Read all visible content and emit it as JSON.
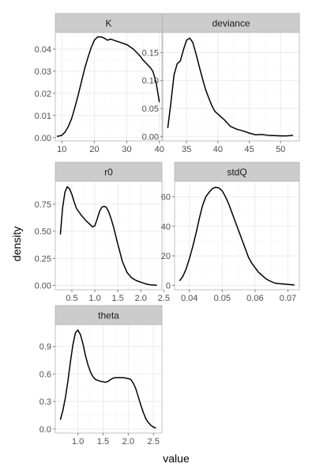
{
  "axes": {
    "xlabel": "value",
    "ylabel": "density"
  },
  "colors": {
    "strip_fill": "#cccccc",
    "strip_border": "#b3b3b3",
    "panel_border": "#b3b3b3",
    "grid_major": "#ebebeb",
    "grid_minor": "#f5f5f5",
    "line": "#000000",
    "tick": "#7f7f7f"
  },
  "chart_data": [
    {
      "type": "line",
      "title": "K",
      "xlim": [
        8,
        40.8
      ],
      "ylim": [
        -0.0015,
        0.0475
      ],
      "xticks": [
        10,
        20,
        30,
        40
      ],
      "xtick_labels": [
        "10",
        "20",
        "30",
        "40"
      ],
      "yticks": [
        0.0,
        0.01,
        0.02,
        0.03,
        0.04
      ],
      "ytick_labels": [
        "0.00",
        "0.01",
        "0.02",
        "0.03",
        "0.04"
      ],
      "grid": true,
      "x": [
        8.5,
        10,
        11,
        12,
        13,
        14,
        15,
        16,
        17,
        18,
        19,
        20,
        21,
        22,
        23,
        24,
        25,
        26,
        27,
        28,
        29,
        30,
        31,
        32,
        33,
        34,
        35,
        36,
        37,
        38,
        39,
        40
      ],
      "y": [
        0.0005,
        0.001,
        0.0025,
        0.005,
        0.0085,
        0.0135,
        0.019,
        0.025,
        0.031,
        0.036,
        0.0405,
        0.044,
        0.0455,
        0.0455,
        0.045,
        0.044,
        0.0445,
        0.044,
        0.0435,
        0.043,
        0.0425,
        0.042,
        0.041,
        0.04,
        0.0385,
        0.037,
        0.035,
        0.0335,
        0.032,
        0.03,
        0.025,
        0.016
      ]
    },
    {
      "type": "line",
      "title": "deviance",
      "xlim": [
        31.2,
        53
      ],
      "ylim": [
        -0.008,
        0.186
      ],
      "xticks": [
        35,
        40,
        45,
        50
      ],
      "xtick_labels": [
        "35",
        "40",
        "45",
        "50"
      ],
      "yticks": [
        0.0,
        0.05,
        0.1,
        0.15
      ],
      "ytick_labels": [
        "0.00",
        "0.05",
        "0.10",
        "0.15"
      ],
      "grid": true,
      "x": [
        32,
        32.5,
        33,
        33.5,
        34,
        34.5,
        35,
        35.5,
        36,
        36.5,
        37,
        37.5,
        38,
        38.5,
        39,
        39.5,
        40,
        41,
        42,
        43,
        44,
        45,
        46,
        47,
        48,
        49,
        50,
        51,
        52
      ],
      "y": [
        0.015,
        0.06,
        0.11,
        0.13,
        0.135,
        0.155,
        0.172,
        0.176,
        0.168,
        0.148,
        0.126,
        0.105,
        0.085,
        0.07,
        0.056,
        0.045,
        0.04,
        0.03,
        0.018,
        0.013,
        0.01,
        0.006,
        0.003,
        0.0035,
        0.002,
        0.0015,
        0.001,
        0.001,
        0.002
      ]
    },
    {
      "type": "line",
      "title": "r0",
      "xlim": [
        0.14,
        2.46
      ],
      "ylim": [
        -0.04,
        0.96
      ],
      "xticks": [
        0.5,
        1.0,
        1.5,
        2.0,
        2.5
      ],
      "xtick_labels": [
        "0.5",
        "1.0",
        "1.5",
        "2.0",
        "2.5"
      ],
      "yticks": [
        0.0,
        0.25,
        0.5,
        0.75
      ],
      "ytick_labels": [
        "0.00",
        "0.25",
        "0.50",
        "0.75"
      ],
      "grid": true,
      "x": [
        0.25,
        0.3,
        0.35,
        0.4,
        0.45,
        0.5,
        0.55,
        0.6,
        0.7,
        0.8,
        0.9,
        0.95,
        1.0,
        1.05,
        1.1,
        1.15,
        1.2,
        1.25,
        1.3,
        1.35,
        1.4,
        1.5,
        1.6,
        1.7,
        1.8,
        1.9,
        2.0,
        2.1,
        2.2,
        2.3,
        2.35
      ],
      "y": [
        0.47,
        0.72,
        0.86,
        0.91,
        0.89,
        0.84,
        0.77,
        0.71,
        0.65,
        0.6,
        0.56,
        0.54,
        0.55,
        0.61,
        0.68,
        0.72,
        0.73,
        0.72,
        0.68,
        0.62,
        0.55,
        0.38,
        0.22,
        0.12,
        0.07,
        0.045,
        0.03,
        0.015,
        0.006,
        0.003,
        0.001
      ]
    },
    {
      "type": "line",
      "title": "stdQ",
      "xlim": [
        0.0355,
        0.0735
      ],
      "ylim": [
        -3,
        70.5
      ],
      "xticks": [
        0.04,
        0.05,
        0.06,
        0.07
      ],
      "xtick_labels": [
        "0.04",
        "0.05",
        "0.06",
        "0.07"
      ],
      "yticks": [
        0,
        20,
        40,
        60
      ],
      "ytick_labels": [
        "0",
        "20",
        "40",
        "60"
      ],
      "grid": true,
      "x": [
        0.037,
        0.038,
        0.039,
        0.04,
        0.041,
        0.042,
        0.043,
        0.044,
        0.045,
        0.046,
        0.047,
        0.048,
        0.049,
        0.05,
        0.051,
        0.052,
        0.053,
        0.054,
        0.055,
        0.056,
        0.057,
        0.058,
        0.059,
        0.06,
        0.061,
        0.062,
        0.063,
        0.064,
        0.065,
        0.066,
        0.067,
        0.068,
        0.069,
        0.07,
        0.071,
        0.072
      ],
      "y": [
        3,
        6,
        11,
        18,
        26,
        35,
        45,
        54,
        60,
        63,
        65.5,
        66.5,
        66,
        64,
        60,
        55,
        49,
        43,
        37,
        31,
        25,
        19,
        15,
        12,
        9,
        7,
        5,
        3.5,
        2.5,
        1.5,
        1.2,
        1,
        0.8,
        0.6,
        0.4,
        0.2
      ]
    },
    {
      "type": "line",
      "title": "theta",
      "xlim": [
        0.55,
        2.67
      ],
      "ylim": [
        -0.045,
        1.14
      ],
      "xticks": [
        1.0,
        1.5,
        2.0,
        2.5
      ],
      "xtick_labels": [
        "1.0",
        "1.5",
        "2.0",
        "2.5"
      ],
      "yticks": [
        0.0,
        0.3,
        0.6,
        0.9
      ],
      "ytick_labels": [
        "0.0",
        "0.3",
        "0.6",
        "0.9"
      ],
      "grid": true,
      "x": [
        0.65,
        0.7,
        0.75,
        0.8,
        0.85,
        0.9,
        0.95,
        1.0,
        1.05,
        1.1,
        1.15,
        1.2,
        1.25,
        1.3,
        1.35,
        1.4,
        1.45,
        1.5,
        1.55,
        1.6,
        1.65,
        1.7,
        1.75,
        1.8,
        1.85,
        1.9,
        1.95,
        2.0,
        2.05,
        2.1,
        2.15,
        2.2,
        2.25,
        2.3,
        2.35,
        2.4,
        2.45,
        2.5,
        2.55
      ],
      "y": [
        0.1,
        0.2,
        0.34,
        0.52,
        0.73,
        0.92,
        1.05,
        1.08,
        1.03,
        0.93,
        0.8,
        0.7,
        0.62,
        0.57,
        0.54,
        0.53,
        0.52,
        0.515,
        0.51,
        0.52,
        0.54,
        0.555,
        0.56,
        0.56,
        0.56,
        0.56,
        0.555,
        0.55,
        0.54,
        0.5,
        0.44,
        0.35,
        0.26,
        0.18,
        0.11,
        0.07,
        0.04,
        0.02,
        0.01
      ]
    }
  ]
}
